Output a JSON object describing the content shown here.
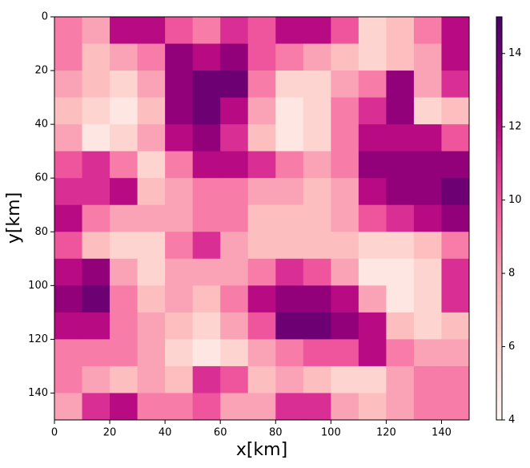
{
  "chart_data": {
    "type": "heatmap",
    "xlabel": "x[km]",
    "ylabel": "y[km]",
    "xlim": [
      0,
      150
    ],
    "ylim": [
      0,
      150
    ],
    "y_inverted": true,
    "xticks": [
      0,
      20,
      40,
      60,
      80,
      100,
      120,
      140
    ],
    "yticks": [
      0,
      20,
      40,
      60,
      80,
      100,
      120,
      140
    ],
    "clim": [
      4,
      15
    ],
    "cticks": [
      4,
      6,
      8,
      10,
      12,
      14
    ],
    "colormap": [
      "#fff7f3",
      "#fde0dd",
      "#fcc5c0",
      "#fa9fb5",
      "#f768a1",
      "#dd3497",
      "#ae017e",
      "#7a0177",
      "#49006a"
    ],
    "z": [
      [
        9,
        8,
        12,
        12,
        10,
        9,
        11,
        10,
        12,
        12,
        10,
        6,
        7,
        9,
        12
      ],
      [
        9,
        7,
        8,
        9,
        13,
        12,
        13,
        10,
        9,
        8,
        7,
        6,
        7,
        8,
        12
      ],
      [
        8,
        7,
        6,
        8,
        13,
        14,
        14,
        9,
        6,
        6,
        8,
        9,
        13,
        8,
        11
      ],
      [
        7,
        6,
        5,
        7,
        13,
        14,
        12,
        8,
        5,
        6,
        9,
        11,
        13,
        6,
        7
      ],
      [
        8,
        5,
        6,
        8,
        12,
        13,
        11,
        7,
        5,
        6,
        9,
        12,
        12,
        12,
        10
      ],
      [
        10,
        11,
        9,
        6,
        9,
        12,
        12,
        11,
        9,
        8,
        9,
        13,
        13,
        13,
        13
      ],
      [
        11,
        11,
        12,
        7,
        8,
        9,
        9,
        8,
        8,
        7,
        8,
        12,
        13,
        13,
        14
      ],
      [
        12,
        9,
        8,
        8,
        8,
        9,
        9,
        7,
        7,
        7,
        8,
        10,
        11,
        12,
        13
      ],
      [
        10,
        7,
        6,
        6,
        9,
        11,
        8,
        7,
        7,
        7,
        7,
        6,
        6,
        7,
        9
      ],
      [
        12,
        13,
        8,
        6,
        8,
        8,
        8,
        9,
        11,
        10,
        8,
        5,
        5,
        6,
        11
      ],
      [
        13,
        14,
        9,
        7,
        8,
        7,
        9,
        12,
        13,
        13,
        12,
        8,
        5,
        6,
        11
      ],
      [
        12,
        12,
        9,
        8,
        7,
        6,
        8,
        10,
        14,
        14,
        13,
        12,
        7,
        6,
        7
      ],
      [
        9,
        9,
        9,
        8,
        6,
        5,
        6,
        8,
        9,
        10,
        10,
        12,
        9,
        8,
        8
      ],
      [
        9,
        8,
        7,
        8,
        7,
        11,
        10,
        7,
        8,
        7,
        6,
        6,
        8,
        9,
        9
      ],
      [
        8,
        11,
        12,
        9,
        9,
        10,
        8,
        8,
        11,
        11,
        8,
        7,
        8,
        9,
        9
      ]
    ]
  }
}
